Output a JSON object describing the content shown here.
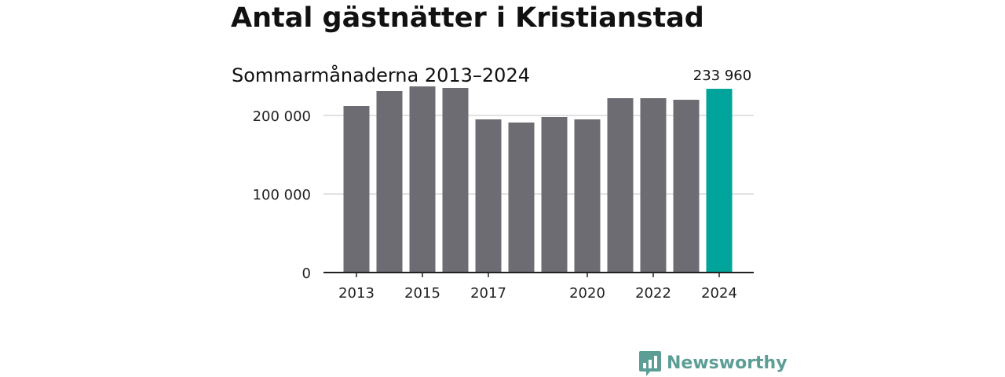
{
  "title": "Antal gästnätter i Kristianstad",
  "subtitle": "Sommarmånaderna 2013–2024",
  "brand": {
    "name": "Newsworthy",
    "icon": "newsworthy-logo-icon",
    "color": "#5c9e96"
  },
  "colors": {
    "bar": "#6d6c73",
    "highlight": "#00a49a",
    "grid": "#d9d9d9",
    "axis": "#222222"
  },
  "chart_data": {
    "type": "bar",
    "categories": [
      "2013",
      "2014",
      "2015",
      "2016",
      "2017",
      "2018",
      "2019",
      "2020",
      "2021",
      "2022",
      "2023",
      "2024"
    ],
    "values": [
      212000,
      231000,
      237000,
      235000,
      195000,
      191000,
      198000,
      195000,
      222000,
      222000,
      220000,
      233960
    ],
    "highlight_index": 11,
    "value_labels": [
      {
        "index": 11,
        "text": "233 960"
      }
    ],
    "x_tick_labels": [
      "2013",
      "2015",
      "2017",
      "2020",
      "2022",
      "2024"
    ],
    "y_ticks": [
      0,
      100000,
      200000
    ],
    "y_tick_labels": [
      "0",
      "100 000",
      "200 000"
    ],
    "ylim": [
      0,
      240000
    ],
    "grid": true,
    "xlabel": "",
    "ylabel": ""
  }
}
